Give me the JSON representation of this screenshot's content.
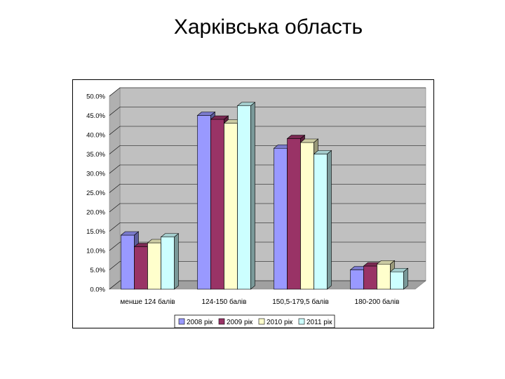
{
  "page": {
    "title": "Харківська область"
  },
  "chart_data": {
    "type": "bar",
    "title": "",
    "xlabel": "",
    "ylabel": "",
    "categories": [
      "менше 124 балів",
      "124-150 балів",
      "150,5-179,5 балів",
      "180-200 балів"
    ],
    "series": [
      {
        "name": "2008 рік",
        "values": [
          14.0,
          45.0,
          36.5,
          5.0
        ],
        "color": "#9999FF"
      },
      {
        "name": "2009 рік",
        "values": [
          11.0,
          44.0,
          39.0,
          6.0
        ],
        "color": "#993366"
      },
      {
        "name": "2010 рік",
        "values": [
          12.0,
          43.0,
          38.0,
          6.5
        ],
        "color": "#FFFFCC"
      },
      {
        "name": "2011 рік",
        "values": [
          13.5,
          47.5,
          35.0,
          4.5
        ],
        "color": "#CCFFFF"
      }
    ],
    "ylim": [
      0,
      50
    ],
    "y_ticks": [
      "0.0%",
      "5.0%",
      "10.0%",
      "15.0%",
      "20.0%",
      "25.0%",
      "30.0%",
      "35.0%",
      "40.0%",
      "45.0%",
      "50.0%"
    ],
    "grid": true,
    "legend_position": "bottom",
    "three_d": true,
    "colors": {
      "wall": "#C0C0C0",
      "floor": "#A0A0A0",
      "grid": "#000000",
      "edge": "#000000"
    }
  }
}
